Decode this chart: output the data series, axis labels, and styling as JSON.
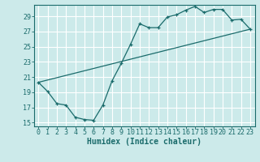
{
  "xlabel": "Humidex (Indice chaleur)",
  "bg_color": "#cceaea",
  "grid_color": "#ffffff",
  "line_color": "#1a6b6b",
  "xlim": [
    -0.5,
    23.5
  ],
  "ylim": [
    14.5,
    30.5
  ],
  "xticks": [
    0,
    1,
    2,
    3,
    4,
    5,
    6,
    7,
    8,
    9,
    10,
    11,
    12,
    13,
    14,
    15,
    16,
    17,
    18,
    19,
    20,
    21,
    22,
    23
  ],
  "yticks": [
    15,
    17,
    19,
    21,
    23,
    25,
    27,
    29
  ],
  "hours": [
    0,
    1,
    2,
    3,
    4,
    5,
    6,
    7,
    8,
    9,
    10,
    11,
    12,
    13,
    14,
    15,
    16,
    17,
    18,
    19,
    20,
    21,
    22,
    23
  ],
  "values": [
    20.3,
    19.1,
    17.5,
    17.3,
    15.7,
    15.4,
    15.3,
    17.3,
    20.5,
    22.8,
    25.3,
    28.0,
    27.5,
    27.5,
    28.9,
    29.2,
    29.8,
    30.3,
    29.5,
    29.9,
    29.9,
    28.5,
    28.6,
    27.3
  ],
  "line2_x": [
    0,
    23
  ],
  "line2_y": [
    20.3,
    27.3
  ],
  "xlabel_fontsize": 7,
  "tick_fontsize": 6
}
